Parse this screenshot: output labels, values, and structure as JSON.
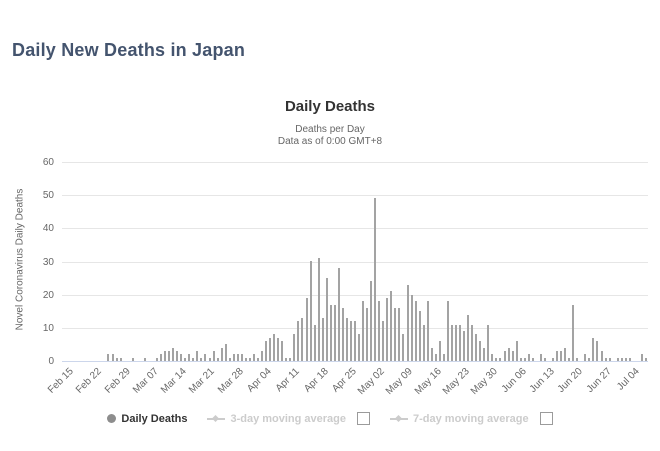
{
  "page": {
    "title": "Daily New Deaths in Japan"
  },
  "chart": {
    "title": "Daily Deaths",
    "subtitle_line1": "Deaths per Day",
    "subtitle_line2": "Data as of 0:00 GMT+8",
    "y_axis_title": "Novel Coronavirus Daily Deaths",
    "colors": {
      "bar": "#a3a3a3",
      "grid": "#e6e6e6",
      "axis_line": "#ccd6eb",
      "title": "#333333",
      "subtitle": "#666666",
      "page_title": "#44546e",
      "disabled_legend": "#cccccc"
    }
  },
  "legend": {
    "items": [
      {
        "label": "Daily Deaths",
        "active": true,
        "checkbox": false
      },
      {
        "label": "3-day moving average",
        "active": false,
        "checkbox": true
      },
      {
        "label": "7-day moving average",
        "active": false,
        "checkbox": true
      }
    ]
  },
  "chart_data": {
    "type": "bar",
    "title": "Daily Deaths",
    "subtitle": "Deaths per Day / Data as of 0:00 GMT+8",
    "xlabel": "",
    "ylabel": "Novel Coronavirus Daily Deaths",
    "ylim": [
      0,
      60
    ],
    "yticks": [
      0,
      10,
      20,
      30,
      40,
      50,
      60
    ],
    "grid": true,
    "legend_position": "bottom",
    "xtick_interval_days": 7,
    "xtick_labels": [
      "Feb 15",
      "Feb 22",
      "Feb 29",
      "Mar 07",
      "Mar 14",
      "Mar 21",
      "Mar 28",
      "Apr 04",
      "Apr 11",
      "Apr 18",
      "Apr 25",
      "May 02",
      "May 09",
      "May 16",
      "May 23",
      "May 30",
      "Jun 06",
      "Jun 13",
      "Jun 20",
      "Jun 27",
      "Jul 04"
    ],
    "x": [
      "Feb 15",
      "Feb 16",
      "Feb 17",
      "Feb 18",
      "Feb 19",
      "Feb 20",
      "Feb 21",
      "Feb 22",
      "Feb 23",
      "Feb 24",
      "Feb 25",
      "Feb 26",
      "Feb 27",
      "Feb 28",
      "Feb 29",
      "Mar 01",
      "Mar 02",
      "Mar 03",
      "Mar 04",
      "Mar 05",
      "Mar 06",
      "Mar 07",
      "Mar 08",
      "Mar 09",
      "Mar 10",
      "Mar 11",
      "Mar 12",
      "Mar 13",
      "Mar 14",
      "Mar 15",
      "Mar 16",
      "Mar 17",
      "Mar 18",
      "Mar 19",
      "Mar 20",
      "Mar 21",
      "Mar 22",
      "Mar 23",
      "Mar 24",
      "Mar 25",
      "Mar 26",
      "Mar 27",
      "Mar 28",
      "Mar 29",
      "Mar 30",
      "Mar 31",
      "Apr 01",
      "Apr 02",
      "Apr 03",
      "Apr 04",
      "Apr 05",
      "Apr 06",
      "Apr 07",
      "Apr 08",
      "Apr 09",
      "Apr 10",
      "Apr 11",
      "Apr 12",
      "Apr 13",
      "Apr 14",
      "Apr 15",
      "Apr 16",
      "Apr 17",
      "Apr 18",
      "Apr 19",
      "Apr 20",
      "Apr 21",
      "Apr 22",
      "Apr 23",
      "Apr 24",
      "Apr 25",
      "Apr 26",
      "Apr 27",
      "Apr 28",
      "Apr 29",
      "Apr 30",
      "May 01",
      "May 02",
      "May 03",
      "May 04",
      "May 05",
      "May 06",
      "May 07",
      "May 08",
      "May 09",
      "May 10",
      "May 11",
      "May 12",
      "May 13",
      "May 14",
      "May 15",
      "May 16",
      "May 17",
      "May 18",
      "May 19",
      "May 20",
      "May 21",
      "May 22",
      "May 23",
      "May 24",
      "May 25",
      "May 26",
      "May 27",
      "May 28",
      "May 29",
      "May 30",
      "May 31",
      "Jun 01",
      "Jun 02",
      "Jun 03",
      "Jun 04",
      "Jun 05",
      "Jun 06",
      "Jun 07",
      "Jun 08",
      "Jun 09",
      "Jun 10",
      "Jun 11",
      "Jun 12",
      "Jun 13",
      "Jun 14",
      "Jun 15",
      "Jun 16",
      "Jun 17",
      "Jun 18",
      "Jun 19",
      "Jun 20",
      "Jun 21",
      "Jun 22",
      "Jun 23",
      "Jun 24",
      "Jun 25",
      "Jun 26",
      "Jun 27",
      "Jun 28",
      "Jun 29",
      "Jun 30",
      "Jul 01",
      "Jul 02",
      "Jul 03",
      "Jul 04",
      "Jul 05",
      "Jul 06",
      "Jul 07",
      "Jul 08"
    ],
    "values": [
      0,
      0,
      0,
      0,
      0,
      0,
      0,
      0,
      0,
      0,
      0,
      2,
      2,
      1,
      1,
      0,
      0,
      1,
      0,
      0,
      1,
      0,
      0,
      1,
      2,
      3,
      3,
      4,
      3,
      2,
      1,
      2,
      1,
      3,
      1,
      2,
      1,
      3,
      1,
      4,
      5,
      1,
      2,
      2,
      2,
      1,
      1,
      2,
      1,
      3,
      6,
      7,
      8,
      7,
      6,
      1,
      1,
      8,
      12,
      13,
      19,
      30,
      11,
      31,
      13,
      25,
      17,
      17,
      28,
      16,
      13,
      12,
      12,
      8,
      18,
      16,
      24,
      49,
      18,
      12,
      19,
      21,
      16,
      16,
      8,
      23,
      20,
      18,
      15,
      11,
      18,
      4,
      2,
      6,
      2,
      18,
      11,
      11,
      11,
      9,
      14,
      11,
      8,
      6,
      4,
      11,
      2,
      1,
      1,
      3,
      4,
      3,
      6,
      1,
      1,
      2,
      1,
      0,
      2,
      1,
      0,
      1,
      3,
      3,
      4,
      1,
      17,
      1,
      0,
      2,
      1,
      7,
      6,
      3,
      1,
      1,
      0,
      1,
      1,
      1,
      1,
      0,
      0,
      2,
      1
    ],
    "series": [
      {
        "name": "Daily Deaths",
        "color": "#a3a3a3"
      }
    ]
  }
}
